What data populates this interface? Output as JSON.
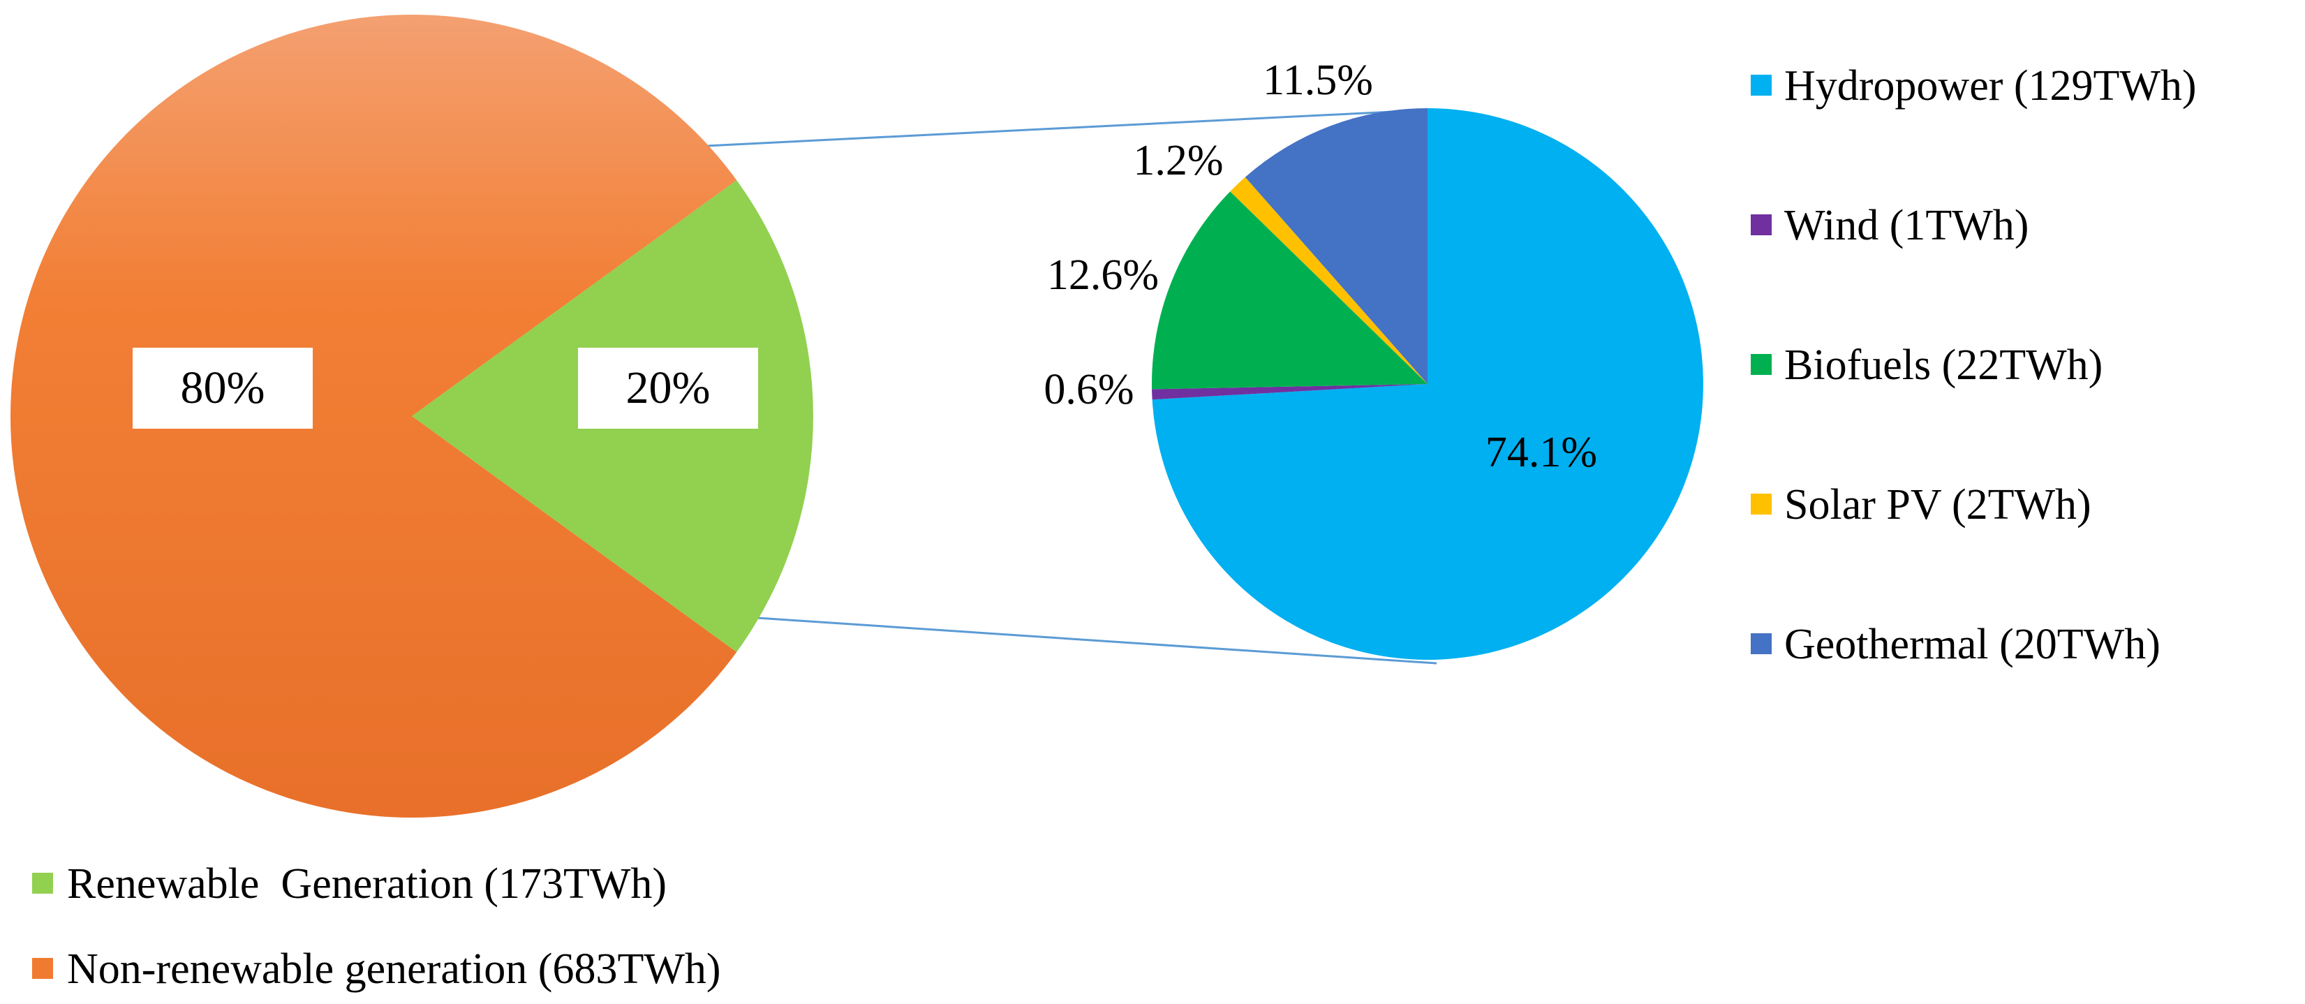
{
  "chart_data": [
    {
      "type": "pie",
      "slices": [
        {
          "label": "Renewable  Generation (173TWh)",
          "value": 20,
          "display": "20%",
          "color": "#92d050"
        },
        {
          "label": "Non-renewable generation (683TWh)",
          "value": 80,
          "display": "80%",
          "color": "#f07b30"
        }
      ],
      "legend_position": "bottom-left"
    },
    {
      "type": "pie",
      "slices": [
        {
          "label": "Hydropower (129TWh)",
          "value": 74.1,
          "display": "74.1%",
          "color": "#00b0f0"
        },
        {
          "label": "Wind (1TWh)",
          "value": 0.6,
          "display": "0.6%",
          "color": "#7030a0"
        },
        {
          "label": "Biofuels (22TWh)",
          "value": 12.6,
          "display": "12.6%",
          "color": "#00b050"
        },
        {
          "label": "Solar PV (2TWh)",
          "value": 1.2,
          "display": "1.2%",
          "color": "#ffc000"
        },
        {
          "label": "Geothermal (20TWh)",
          "value": 11.5,
          "display": "11.5%",
          "color": "#4472c4"
        }
      ],
      "legend_position": "right"
    }
  ]
}
